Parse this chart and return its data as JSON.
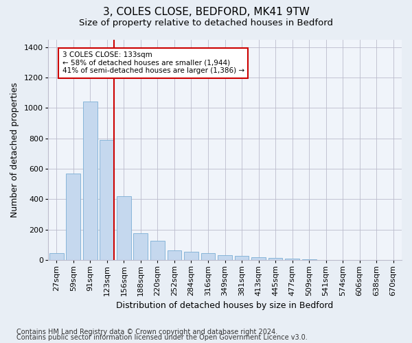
{
  "title1": "3, COLES CLOSE, BEDFORD, MK41 9TW",
  "title2": "Size of property relative to detached houses in Bedford",
  "xlabel": "Distribution of detached houses by size in Bedford",
  "ylabel": "Number of detached properties",
  "categories": [
    "27sqm",
    "59sqm",
    "91sqm",
    "123sqm",
    "156sqm",
    "188sqm",
    "220sqm",
    "252sqm",
    "284sqm",
    "316sqm",
    "349sqm",
    "381sqm",
    "413sqm",
    "445sqm",
    "477sqm",
    "509sqm",
    "541sqm",
    "574sqm",
    "606sqm",
    "638sqm",
    "670sqm"
  ],
  "values": [
    45,
    570,
    1040,
    790,
    420,
    178,
    128,
    65,
    55,
    45,
    30,
    27,
    20,
    14,
    10,
    3,
    2,
    1,
    0,
    0,
    0
  ],
  "bar_color": "#c5d8ee",
  "bar_edge_color": "#7aaed4",
  "vline_color": "#cc0000",
  "annotation_text": "3 COLES CLOSE: 133sqm\n← 58% of detached houses are smaller (1,944)\n41% of semi-detached houses are larger (1,386) →",
  "annotation_box_facecolor": "#ffffff",
  "annotation_box_edgecolor": "#cc0000",
  "ylim": [
    0,
    1450
  ],
  "yticks": [
    0,
    200,
    400,
    600,
    800,
    1000,
    1200,
    1400
  ],
  "footnote1": "Contains HM Land Registry data © Crown copyright and database right 2024.",
  "footnote2": "Contains public sector information licensed under the Open Government Licence v3.0.",
  "bg_color": "#e8eef5",
  "plot_bg_color": "#f0f4fa",
  "title1_fontsize": 11,
  "title2_fontsize": 9.5,
  "xlabel_fontsize": 9,
  "ylabel_fontsize": 9,
  "tick_fontsize": 8,
  "footnote_fontsize": 7
}
